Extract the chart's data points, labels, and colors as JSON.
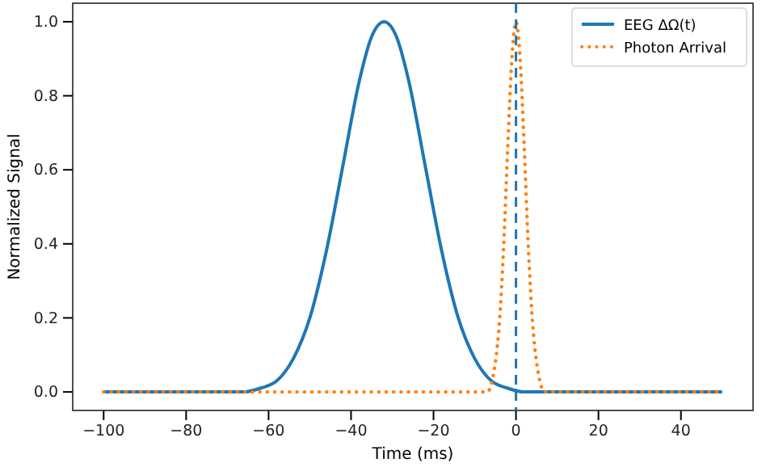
{
  "chart_data": {
    "type": "line",
    "xlabel": "Time (ms)",
    "ylabel": "Normalized Signal",
    "xlim": [
      -107.5,
      57.5
    ],
    "ylim": [
      -0.05,
      1.05
    ],
    "xticks": [
      {
        "value": -100,
        "label": "−100"
      },
      {
        "value": -80,
        "label": "−80"
      },
      {
        "value": -60,
        "label": "−60"
      },
      {
        "value": -40,
        "label": "−40"
      },
      {
        "value": -20,
        "label": "−20"
      },
      0,
      20,
      40
    ],
    "yticks": [
      {
        "value": 0,
        "label": "0.0"
      },
      {
        "value": 0.2,
        "label": "0.2"
      },
      {
        "value": 0.4,
        "label": "0.4"
      },
      {
        "value": 0.6,
        "label": "0.6"
      },
      {
        "value": 0.8,
        "label": "0.8"
      },
      {
        "value": 1,
        "label": "1.0"
      }
    ],
    "grid": false,
    "legend": "top right",
    "marker": "none",
    "series": [
      {
        "name": "EEG ΔΩ(t)",
        "color": "#1f77b4",
        "line_style": "solid",
        "x": [
          -100,
          -66,
          -62,
          -58,
          -54,
          -50,
          -46,
          -42,
          -38,
          -35,
          -32,
          -29,
          -26,
          -22,
          -18,
          -14,
          -10,
          -6,
          -2,
          2,
          50
        ],
        "values": [
          0,
          0,
          0.01,
          0.03,
          0.09,
          0.2,
          0.38,
          0.61,
          0.84,
          0.96,
          1,
          0.96,
          0.84,
          0.61,
          0.38,
          0.2,
          0.09,
          0.03,
          0.01,
          0,
          0
        ]
      },
      {
        "name": "Photon Arrival",
        "color": "#ff7f0e",
        "line_style": "dotted",
        "x": [
          -100,
          -7,
          -5,
          -4,
          -3,
          -2,
          -1,
          0,
          1,
          2,
          3,
          4,
          5,
          7,
          50
        ],
        "values": [
          0,
          0,
          0.08,
          0.19,
          0.39,
          0.66,
          0.9,
          1,
          0.9,
          0.66,
          0.39,
          0.19,
          0.08,
          0,
          0
        ]
      }
    ],
    "ref_lines": [
      {
        "axis": "x",
        "value": 0,
        "label": null,
        "color": "#1f77b4",
        "line_style": "dashed"
      }
    ]
  }
}
